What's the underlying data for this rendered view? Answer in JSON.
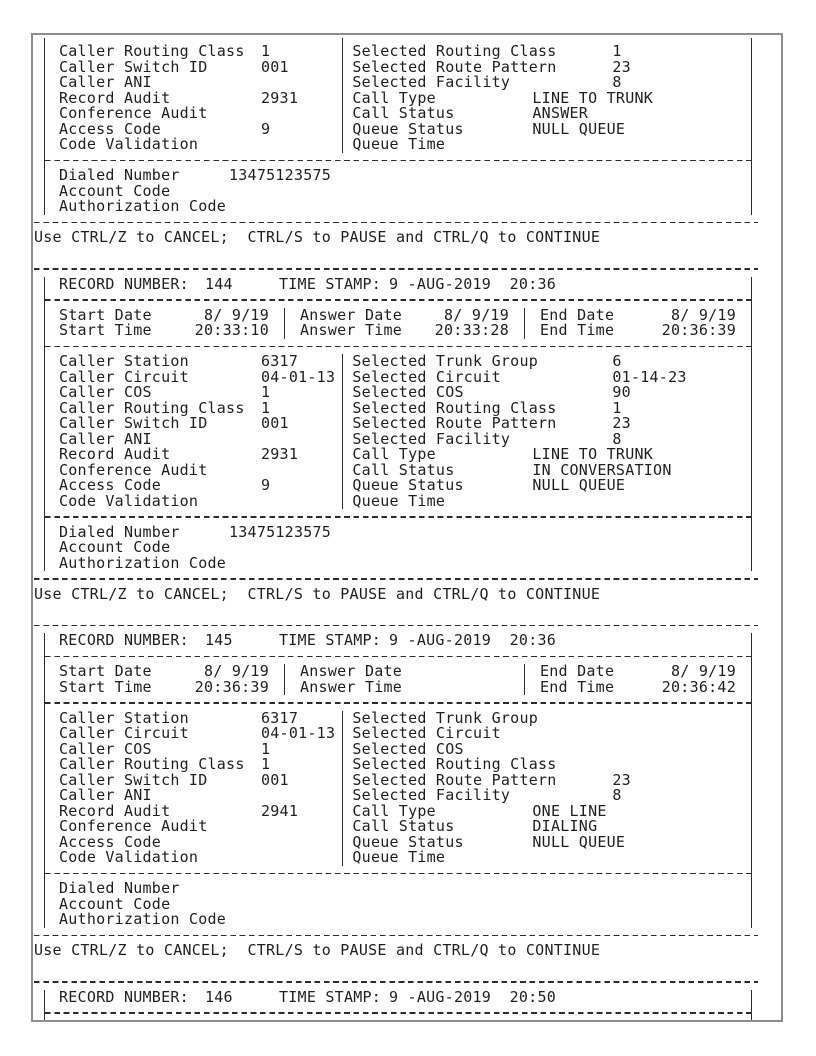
{
  "ui": {
    "use_line": "Use CTRL/Z to CANCEL;  CTRL/S to PAUSE and CTRL/Q to CONTINUE",
    "record_number_label": "RECORD NUMBER:",
    "time_stamp_label": "TIME STAMP:"
  },
  "partial_record": {
    "rows": [
      {
        "l": "Caller Routing Class",
        "lv": "1",
        "r": "Selected Routing Class",
        "rv": "1"
      },
      {
        "l": "Caller Switch ID",
        "lv": "001",
        "r": "Selected Route Pattern",
        "rv": "23"
      },
      {
        "l": "Caller ANI",
        "lv": "",
        "r": "Selected Facility",
        "rv": "8"
      },
      {
        "l": "Record Audit",
        "lv": "2931",
        "r": "Call Type",
        "rv": "LINE TO TRUNK"
      },
      {
        "l": "Conference Audit",
        "lv": "",
        "r": "Call Status",
        "rv": "ANSWER"
      },
      {
        "l": "Access Code",
        "lv": "9",
        "r": "Queue Status",
        "rv": "NULL QUEUE"
      },
      {
        "l": "Code Validation",
        "lv": "",
        "r": "Queue Time",
        "rv": ""
      }
    ],
    "dialed": [
      {
        "label": "Dialed Number",
        "value": "13475123575"
      },
      {
        "label": "Account Code",
        "value": ""
      },
      {
        "label": "Authorization Code",
        "value": ""
      }
    ]
  },
  "records": [
    {
      "number": "144",
      "timestamp": "9 -AUG-2019  20:36",
      "date_rows": [
        [
          {
            "label": "Start Date",
            "value": "8/ 9/19"
          },
          {
            "label": "Answer Date",
            "value": "8/ 9/19"
          },
          {
            "label": "End Date",
            "value": "8/ 9/19"
          }
        ],
        [
          {
            "label": "Start Time",
            "value": "20:33:10"
          },
          {
            "label": "Answer Time",
            "value": "20:33:28"
          },
          {
            "label": "End Time",
            "value": "20:36:39"
          }
        ]
      ],
      "rows": [
        {
          "l": "Caller Station",
          "lv": "6317",
          "r": "Selected Trunk Group",
          "rv": "6"
        },
        {
          "l": "Caller Circuit",
          "lv": "04-01-13",
          "r": "Selected Circuit",
          "rv": "01-14-23"
        },
        {
          "l": "Caller COS",
          "lv": "1",
          "r": "Selected COS",
          "rv": "90"
        },
        {
          "l": "Caller Routing Class",
          "lv": "1",
          "r": "Selected Routing Class",
          "rv": "1"
        },
        {
          "l": "Caller Switch ID",
          "lv": "001",
          "r": "Selected Route Pattern",
          "rv": "23"
        },
        {
          "l": "Caller ANI",
          "lv": "",
          "r": "Selected Facility",
          "rv": "8"
        },
        {
          "l": "Record Audit",
          "lv": "2931",
          "r": "Call Type",
          "rv": "LINE TO TRUNK"
        },
        {
          "l": "Conference Audit",
          "lv": "",
          "r": "Call Status",
          "rv": "IN CONVERSATION"
        },
        {
          "l": "Access Code",
          "lv": "9",
          "r": "Queue Status",
          "rv": "NULL QUEUE"
        },
        {
          "l": "Code Validation",
          "lv": "",
          "r": "Queue Time",
          "rv": ""
        }
      ],
      "dialed": [
        {
          "label": "Dialed Number",
          "value": "13475123575"
        },
        {
          "label": "Account Code",
          "value": ""
        },
        {
          "label": "Authorization Code",
          "value": ""
        }
      ]
    },
    {
      "number": "145",
      "timestamp": "9 -AUG-2019  20:36",
      "date_rows": [
        [
          {
            "label": "Start Date",
            "value": "8/ 9/19"
          },
          {
            "label": "Answer Date",
            "value": ""
          },
          {
            "label": "End Date",
            "value": "8/ 9/19"
          }
        ],
        [
          {
            "label": "Start Time",
            "value": "20:36:39"
          },
          {
            "label": "Answer Time",
            "value": ""
          },
          {
            "label": "End Time",
            "value": "20:36:42"
          }
        ]
      ],
      "rows": [
        {
          "l": "Caller Station",
          "lv": "6317",
          "r": "Selected Trunk Group",
          "rv": ""
        },
        {
          "l": "Caller Circuit",
          "lv": "04-01-13",
          "r": "Selected Circuit",
          "rv": ""
        },
        {
          "l": "Caller COS",
          "lv": "1",
          "r": "Selected COS",
          "rv": ""
        },
        {
          "l": "Caller Routing Class",
          "lv": "1",
          "r": "Selected Routing Class",
          "rv": ""
        },
        {
          "l": "Caller Switch ID",
          "lv": "001",
          "r": "Selected Route Pattern",
          "rv": "23"
        },
        {
          "l": "Caller ANI",
          "lv": "",
          "r": "Selected Facility",
          "rv": "8"
        },
        {
          "l": "Record Audit",
          "lv": "2941",
          "r": "Call Type",
          "rv": "ONE LINE"
        },
        {
          "l": "Conference Audit",
          "lv": "",
          "r": "Call Status",
          "rv": "DIALING"
        },
        {
          "l": "Access Code",
          "lv": "",
          "r": "Queue Status",
          "rv": "NULL QUEUE"
        },
        {
          "l": "Code Validation",
          "lv": "",
          "r": "Queue Time",
          "rv": ""
        }
      ],
      "dialed": [
        {
          "label": "Dialed Number",
          "value": ""
        },
        {
          "label": "Account Code",
          "value": ""
        },
        {
          "label": "Authorization Code",
          "value": ""
        }
      ]
    }
  ],
  "final_record": {
    "number": "146",
    "timestamp": "9 -AUG-2019  20:50"
  }
}
